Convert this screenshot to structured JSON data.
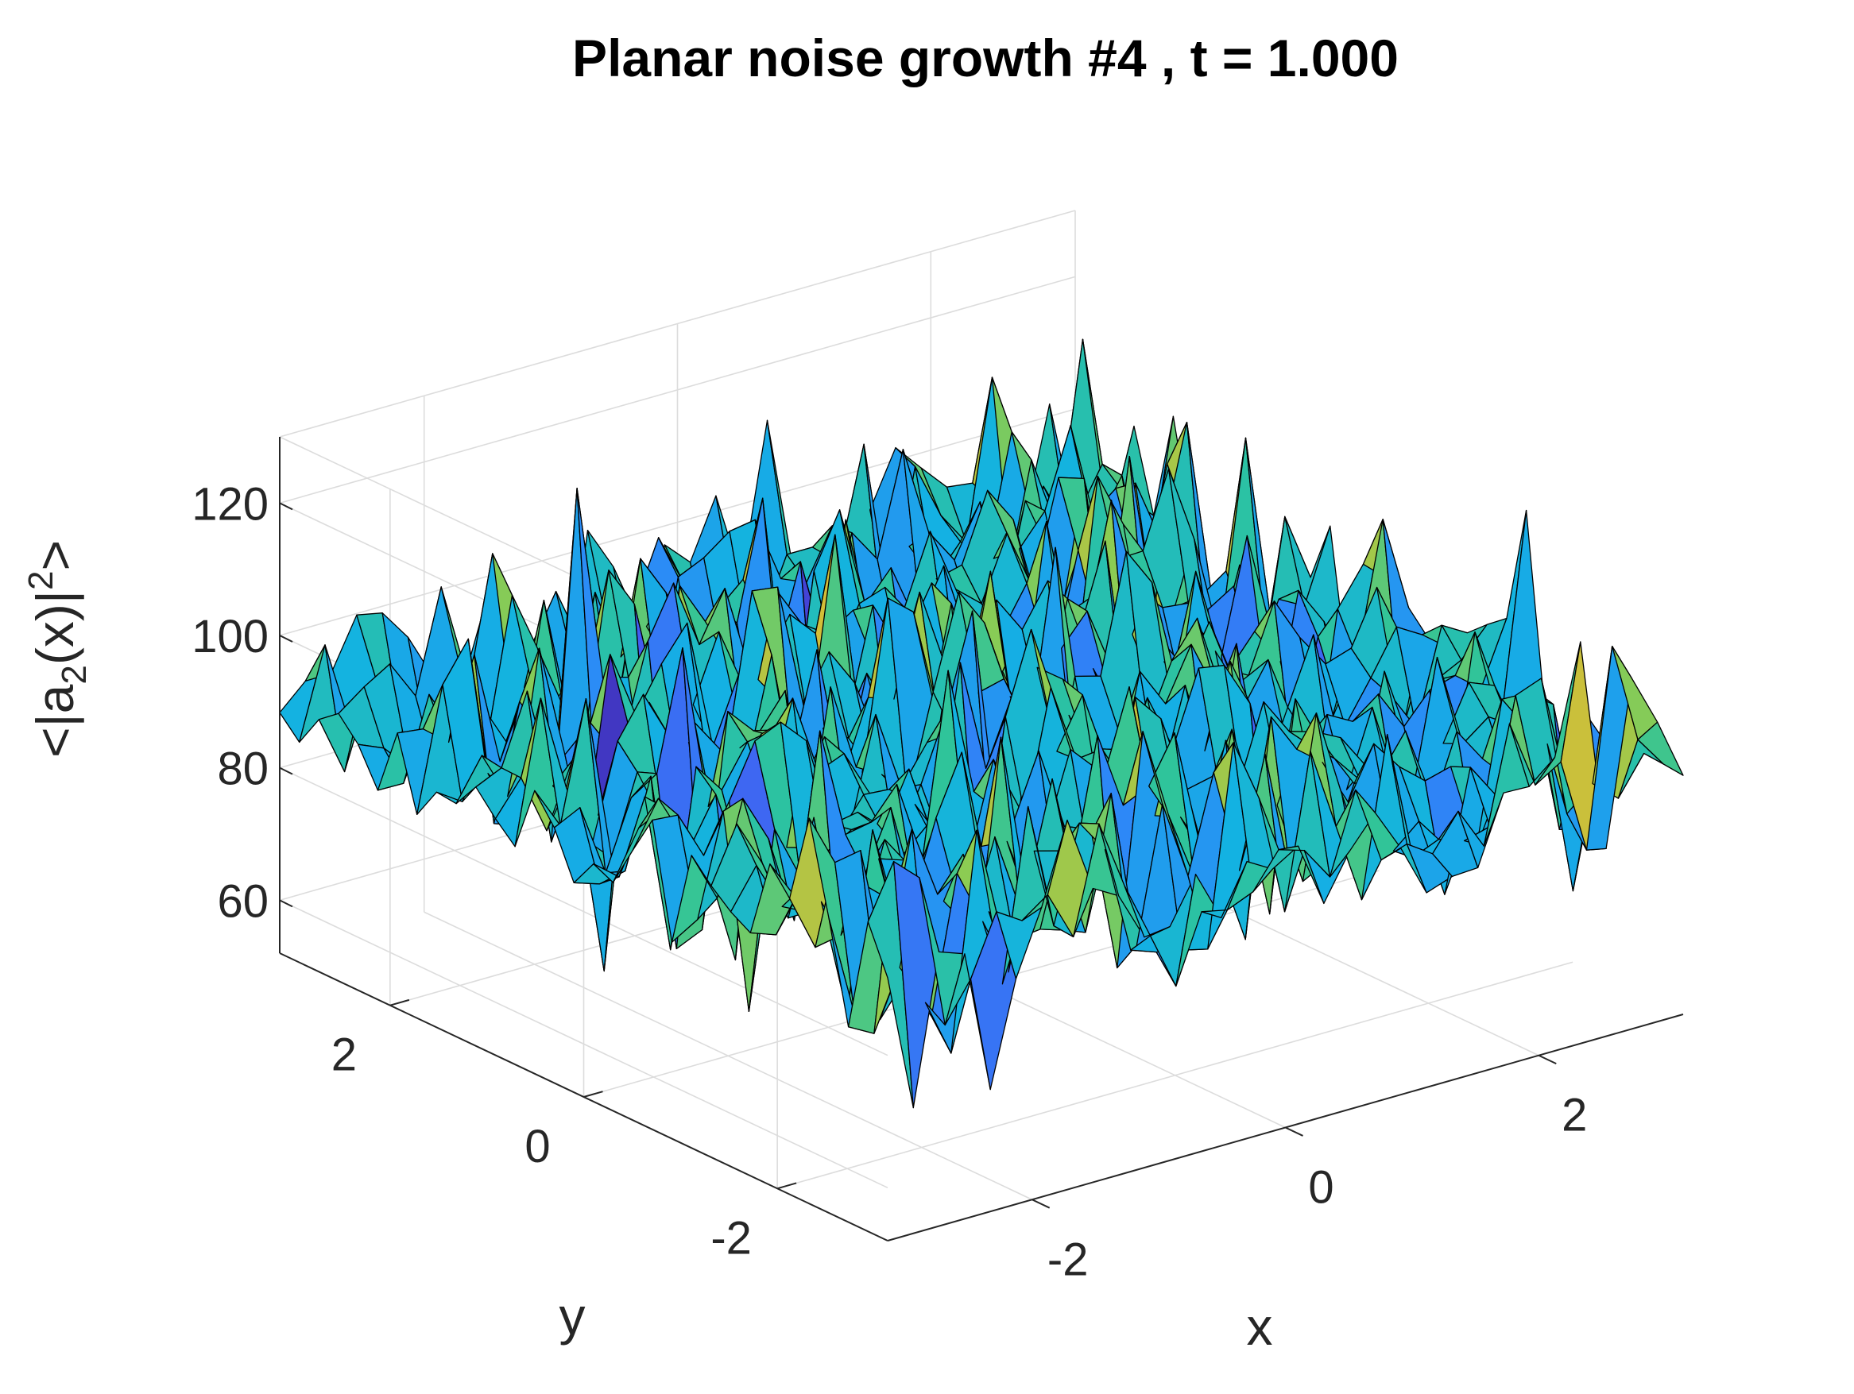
{
  "chart_data": {
    "type": "surface",
    "title": "Planar noise growth #4 , t = 1.000",
    "xlabel": "x",
    "ylabel": "y",
    "zlabel": {
      "prefix": "<|a",
      "subscript": "2",
      "middle": "(x)|",
      "superscript": "2",
      "suffix": ">"
    },
    "xlim": [
      -3.14,
      3.14
    ],
    "ylim": [
      -3.14,
      3.14
    ],
    "zlim": [
      52,
      130
    ],
    "xticks": [
      -2,
      0,
      2
    ],
    "yticks": [
      -2,
      0,
      2
    ],
    "zticks": [
      60,
      80,
      100,
      120
    ],
    "x_tick_labels": [
      "-2",
      "0",
      "2"
    ],
    "y_tick_labels": [
      "-2",
      "0",
      "2"
    ],
    "z_tick_labels": [
      "60",
      "80",
      "100",
      "120"
    ],
    "grid": true,
    "colormap": "parula",
    "edge_color": "#000000",
    "grid_points": 32,
    "mean_value": 90,
    "min_value": 54,
    "max_value": 128
  }
}
